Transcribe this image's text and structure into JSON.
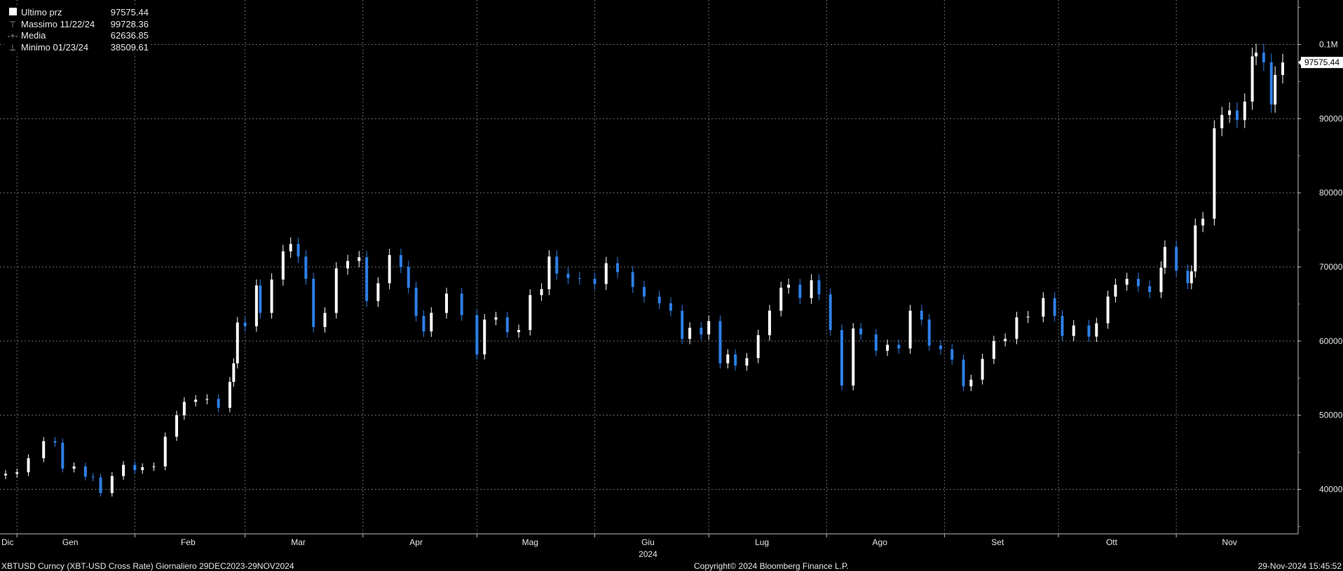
{
  "legend": [
    {
      "mark": "last-price-square",
      "label": "Ultimo prz",
      "value": "97575.44"
    },
    {
      "mark": "high-marker",
      "label": "Massimo 11/22/24",
      "value": "99728.36"
    },
    {
      "mark": "average-marker",
      "label": "Media",
      "value": "62636.85"
    },
    {
      "mark": "low-marker",
      "label": "Minimo 01/23/24",
      "value": "38509.61"
    }
  ],
  "footer": {
    "left": "XBTUSD Curncy (XBT-USD Cross Rate)  Giornaliero 29DEC2023-29NOV2024",
    "center": "Copyright© 2024 Bloomberg Finance L.P.",
    "right": "29-Nov-2024 15:45:52"
  },
  "colors": {
    "up": "#ffffff",
    "down": "#2d7fe6",
    "grid": "#6a6a6a",
    "background": "#000000",
    "price_tag_bg": "#ffffff"
  },
  "chart_data": {
    "type": "candlestick",
    "title": "",
    "ylim": [
      34000,
      106000
    ],
    "y_ticks": [
      {
        "value": 40000,
        "label": "40000"
      },
      {
        "value": 50000,
        "label": "50000"
      },
      {
        "value": 60000,
        "label": "60000"
      },
      {
        "value": 70000,
        "label": "70000"
      },
      {
        "value": 80000,
        "label": "80000"
      },
      {
        "value": 90000,
        "label": "90000"
      },
      {
        "value": 100000,
        "label": "0.1M"
      }
    ],
    "x_start": "2023-12-29",
    "x_end": "2024-11-29",
    "month_labels": [
      {
        "label": "Dic",
        "date": "2023-12-29"
      },
      {
        "label": "Gen",
        "date": "2024-01-15"
      },
      {
        "label": "Feb",
        "date": "2024-02-15"
      },
      {
        "label": "Mar",
        "date": "2024-03-15"
      },
      {
        "label": "Apr",
        "date": "2024-04-15"
      },
      {
        "label": "Mag",
        "date": "2024-05-15"
      },
      {
        "label": "Giu",
        "date": "2024-06-15"
      },
      {
        "label": "Lug",
        "date": "2024-07-15"
      },
      {
        "label": "Ago",
        "date": "2024-08-15"
      },
      {
        "label": "Set",
        "date": "2024-09-15"
      },
      {
        "label": "Ott",
        "date": "2024-10-15"
      },
      {
        "label": "Nov",
        "date": "2024-11-15"
      }
    ],
    "year_label": {
      "label": "2024",
      "date": "2024-06-15"
    },
    "last_price": {
      "value": 97575.44,
      "label": "97575.44"
    },
    "close_series": [
      [
        "2023-12-29",
        42100
      ],
      [
        "2024-01-01",
        42300
      ],
      [
        "2024-01-04",
        44200
      ],
      [
        "2024-01-08",
        46500
      ],
      [
        "2024-01-11",
        46300
      ],
      [
        "2024-01-13",
        42800
      ],
      [
        "2024-01-16",
        43100
      ],
      [
        "2024-01-19",
        41700
      ],
      [
        "2024-01-21",
        41600
      ],
      [
        "2024-01-23",
        39500
      ],
      [
        "2024-01-26",
        41800
      ],
      [
        "2024-01-29",
        43300
      ],
      [
        "2024-02-01",
        42600
      ],
      [
        "2024-02-03",
        43000
      ],
      [
        "2024-02-06",
        43100
      ],
      [
        "2024-02-09",
        47100
      ],
      [
        "2024-02-12",
        50000
      ],
      [
        "2024-02-14",
        51800
      ],
      [
        "2024-02-17",
        52100
      ],
      [
        "2024-02-20",
        52200
      ],
      [
        "2024-02-23",
        51000
      ],
      [
        "2024-02-26",
        54500
      ],
      [
        "2024-02-27",
        57000
      ],
      [
        "2024-02-28",
        62500
      ],
      [
        "2024-03-01",
        62000
      ],
      [
        "2024-03-04",
        67500
      ],
      [
        "2024-03-05",
        63800
      ],
      [
        "2024-03-08",
        68300
      ],
      [
        "2024-03-11",
        72100
      ],
      [
        "2024-03-13",
        73100
      ],
      [
        "2024-03-15",
        71400
      ],
      [
        "2024-03-17",
        68400
      ],
      [
        "2024-03-19",
        61900
      ],
      [
        "2024-03-22",
        63800
      ],
      [
        "2024-03-25",
        69800
      ],
      [
        "2024-03-28",
        70800
      ],
      [
        "2024-03-31",
        71300
      ],
      [
        "2024-04-02",
        65400
      ],
      [
        "2024-04-05",
        67800
      ],
      [
        "2024-04-08",
        71600
      ],
      [
        "2024-04-11",
        70000
      ],
      [
        "2024-04-13",
        67200
      ],
      [
        "2024-04-15",
        63400
      ],
      [
        "2024-04-17",
        61300
      ],
      [
        "2024-04-19",
        63800
      ],
      [
        "2024-04-23",
        66400
      ],
      [
        "2024-04-27",
        63500
      ],
      [
        "2024-05-01",
        58200
      ],
      [
        "2024-05-03",
        62900
      ],
      [
        "2024-05-06",
        63200
      ],
      [
        "2024-05-09",
        61200
      ],
      [
        "2024-05-12",
        61500
      ],
      [
        "2024-05-15",
        66200
      ],
      [
        "2024-05-18",
        67000
      ],
      [
        "2024-05-20",
        71400
      ],
      [
        "2024-05-22",
        69100
      ],
      [
        "2024-05-25",
        68500
      ],
      [
        "2024-05-28",
        68400
      ],
      [
        "2024-06-01",
        67700
      ],
      [
        "2024-06-04",
        70500
      ],
      [
        "2024-06-07",
        69300
      ],
      [
        "2024-06-11",
        67300
      ],
      [
        "2024-06-14",
        66000
      ],
      [
        "2024-06-18",
        65100
      ],
      [
        "2024-06-21",
        64100
      ],
      [
        "2024-06-24",
        60300
      ],
      [
        "2024-06-26",
        61800
      ],
      [
        "2024-06-29",
        60900
      ],
      [
        "2024-07-01",
        62700
      ],
      [
        "2024-07-04",
        57000
      ],
      [
        "2024-07-06",
        58200
      ],
      [
        "2024-07-08",
        56700
      ],
      [
        "2024-07-11",
        57700
      ],
      [
        "2024-07-14",
        60800
      ],
      [
        "2024-07-17",
        64100
      ],
      [
        "2024-07-20",
        67200
      ],
      [
        "2024-07-22",
        67600
      ],
      [
        "2024-07-25",
        65800
      ],
      [
        "2024-07-28",
        68200
      ],
      [
        "2024-07-30",
        66300
      ],
      [
        "2024-08-02",
        61500
      ],
      [
        "2024-08-05",
        54000
      ],
      [
        "2024-08-08",
        61700
      ],
      [
        "2024-08-10",
        60900
      ],
      [
        "2024-08-14",
        58700
      ],
      [
        "2024-08-17",
        59500
      ],
      [
        "2024-08-20",
        59000
      ],
      [
        "2024-08-23",
        64100
      ],
      [
        "2024-08-26",
        62900
      ],
      [
        "2024-08-28",
        59400
      ],
      [
        "2024-08-31",
        58900
      ],
      [
        "2024-09-03",
        57500
      ],
      [
        "2024-09-06",
        53900
      ],
      [
        "2024-09-08",
        54800
      ],
      [
        "2024-09-11",
        57600
      ],
      [
        "2024-09-14",
        60000
      ],
      [
        "2024-09-17",
        60300
      ],
      [
        "2024-09-20",
        63200
      ],
      [
        "2024-09-23",
        63300
      ],
      [
        "2024-09-27",
        65800
      ],
      [
        "2024-09-30",
        63400
      ],
      [
        "2024-10-02",
        60700
      ],
      [
        "2024-10-05",
        62100
      ],
      [
        "2024-10-09",
        60600
      ],
      [
        "2024-10-11",
        62400
      ],
      [
        "2024-10-14",
        66000
      ],
      [
        "2024-10-16",
        67600
      ],
      [
        "2024-10-19",
        68400
      ],
      [
        "2024-10-22",
        67400
      ],
      [
        "2024-10-25",
        66600
      ],
      [
        "2024-10-28",
        69900
      ],
      [
        "2024-10-29",
        72700
      ],
      [
        "2024-11-01",
        69500
      ],
      [
        "2024-11-04",
        67800
      ],
      [
        "2024-11-05",
        69400
      ],
      [
        "2024-11-06",
        75600
      ],
      [
        "2024-11-08",
        76500
      ],
      [
        "2024-11-11",
        88700
      ],
      [
        "2024-11-13",
        90500
      ],
      [
        "2024-11-15",
        91100
      ],
      [
        "2024-11-17",
        89800
      ],
      [
        "2024-11-19",
        92300
      ],
      [
        "2024-11-21",
        98400
      ],
      [
        "2024-11-22",
        98900
      ],
      [
        "2024-11-24",
        97600
      ],
      [
        "2024-11-26",
        91900
      ],
      [
        "2024-11-27",
        95900
      ],
      [
        "2024-11-29",
        97575.44
      ]
    ]
  }
}
